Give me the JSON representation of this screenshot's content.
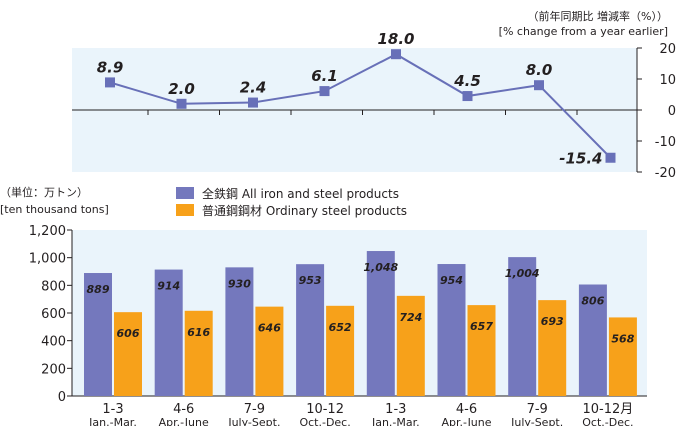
{
  "header": {
    "title_fragment": "",
    "right_label_1": "（前年同期比 増減率（%））",
    "right_label_2": "[% change from a year earlier]",
    "unit_label_1": "（単位：万トン）",
    "unit_label_2": "[ten thousand tons]"
  },
  "chart_data": [
    {
      "type": "line",
      "title": "",
      "ylabel": "[% change from a year earlier]",
      "ylim": [
        -20,
        20
      ],
      "yticks": [
        20,
        10,
        0,
        -10,
        -20
      ],
      "categories": [
        "1-3",
        "4-6",
        "7-9",
        "10-12",
        "1-3",
        "4-6",
        "7-9",
        "10-12"
      ],
      "series": [
        {
          "name": "",
          "values": [
            8.9,
            2.0,
            2.4,
            6.1,
            18.0,
            4.5,
            8.0,
            -15.4
          ]
        }
      ],
      "data_labels": [
        "8.9",
        "2.0",
        "2.4",
        "6.1",
        "18.0",
        "4.5",
        "8.0",
        "-15.4"
      ],
      "colors": {
        "line": "#6870b8",
        "marker": "#6870b8",
        "band": "#eaf4fb"
      }
    },
    {
      "type": "bar",
      "ylim": [
        0,
        1200
      ],
      "yticks": [
        "1,200",
        "1,000",
        "800",
        "600",
        "400",
        "200",
        "0"
      ],
      "ytick_values": [
        1200,
        1000,
        800,
        600,
        400,
        200,
        0
      ],
      "categories": [
        "1-3",
        "4-6",
        "7-9",
        "10-12",
        "1-3",
        "4-6",
        "7-9",
        "10-12月"
      ],
      "category_sublabels": [
        "Jan.-Mar.",
        "Apr.-June",
        "July-Sept.",
        "Oct.-Dec.",
        "Jan.-Mar.",
        "Apr.-June",
        "July-Sept.",
        "Oct.-Dec."
      ],
      "series": [
        {
          "name": "全鉄鋼 All iron and steel products",
          "color": "#7478bd",
          "values": [
            889,
            914,
            930,
            953,
            1048,
            954,
            1004,
            806
          ],
          "labels": [
            "889",
            "914",
            "930",
            "953",
            "1,048",
            "954",
            "1,004",
            "806"
          ]
        },
        {
          "name": "普通鋼鋼材 Ordinary steel products",
          "color": "#f7a11a",
          "values": [
            606,
            616,
            646,
            652,
            724,
            657,
            693,
            568
          ],
          "labels": [
            "606",
            "616",
            "646",
            "652",
            "724",
            "657",
            "693",
            "568"
          ]
        }
      ],
      "legend_position": "top",
      "grid": false,
      "colors": {
        "band": "#eaf4fb"
      }
    }
  ]
}
